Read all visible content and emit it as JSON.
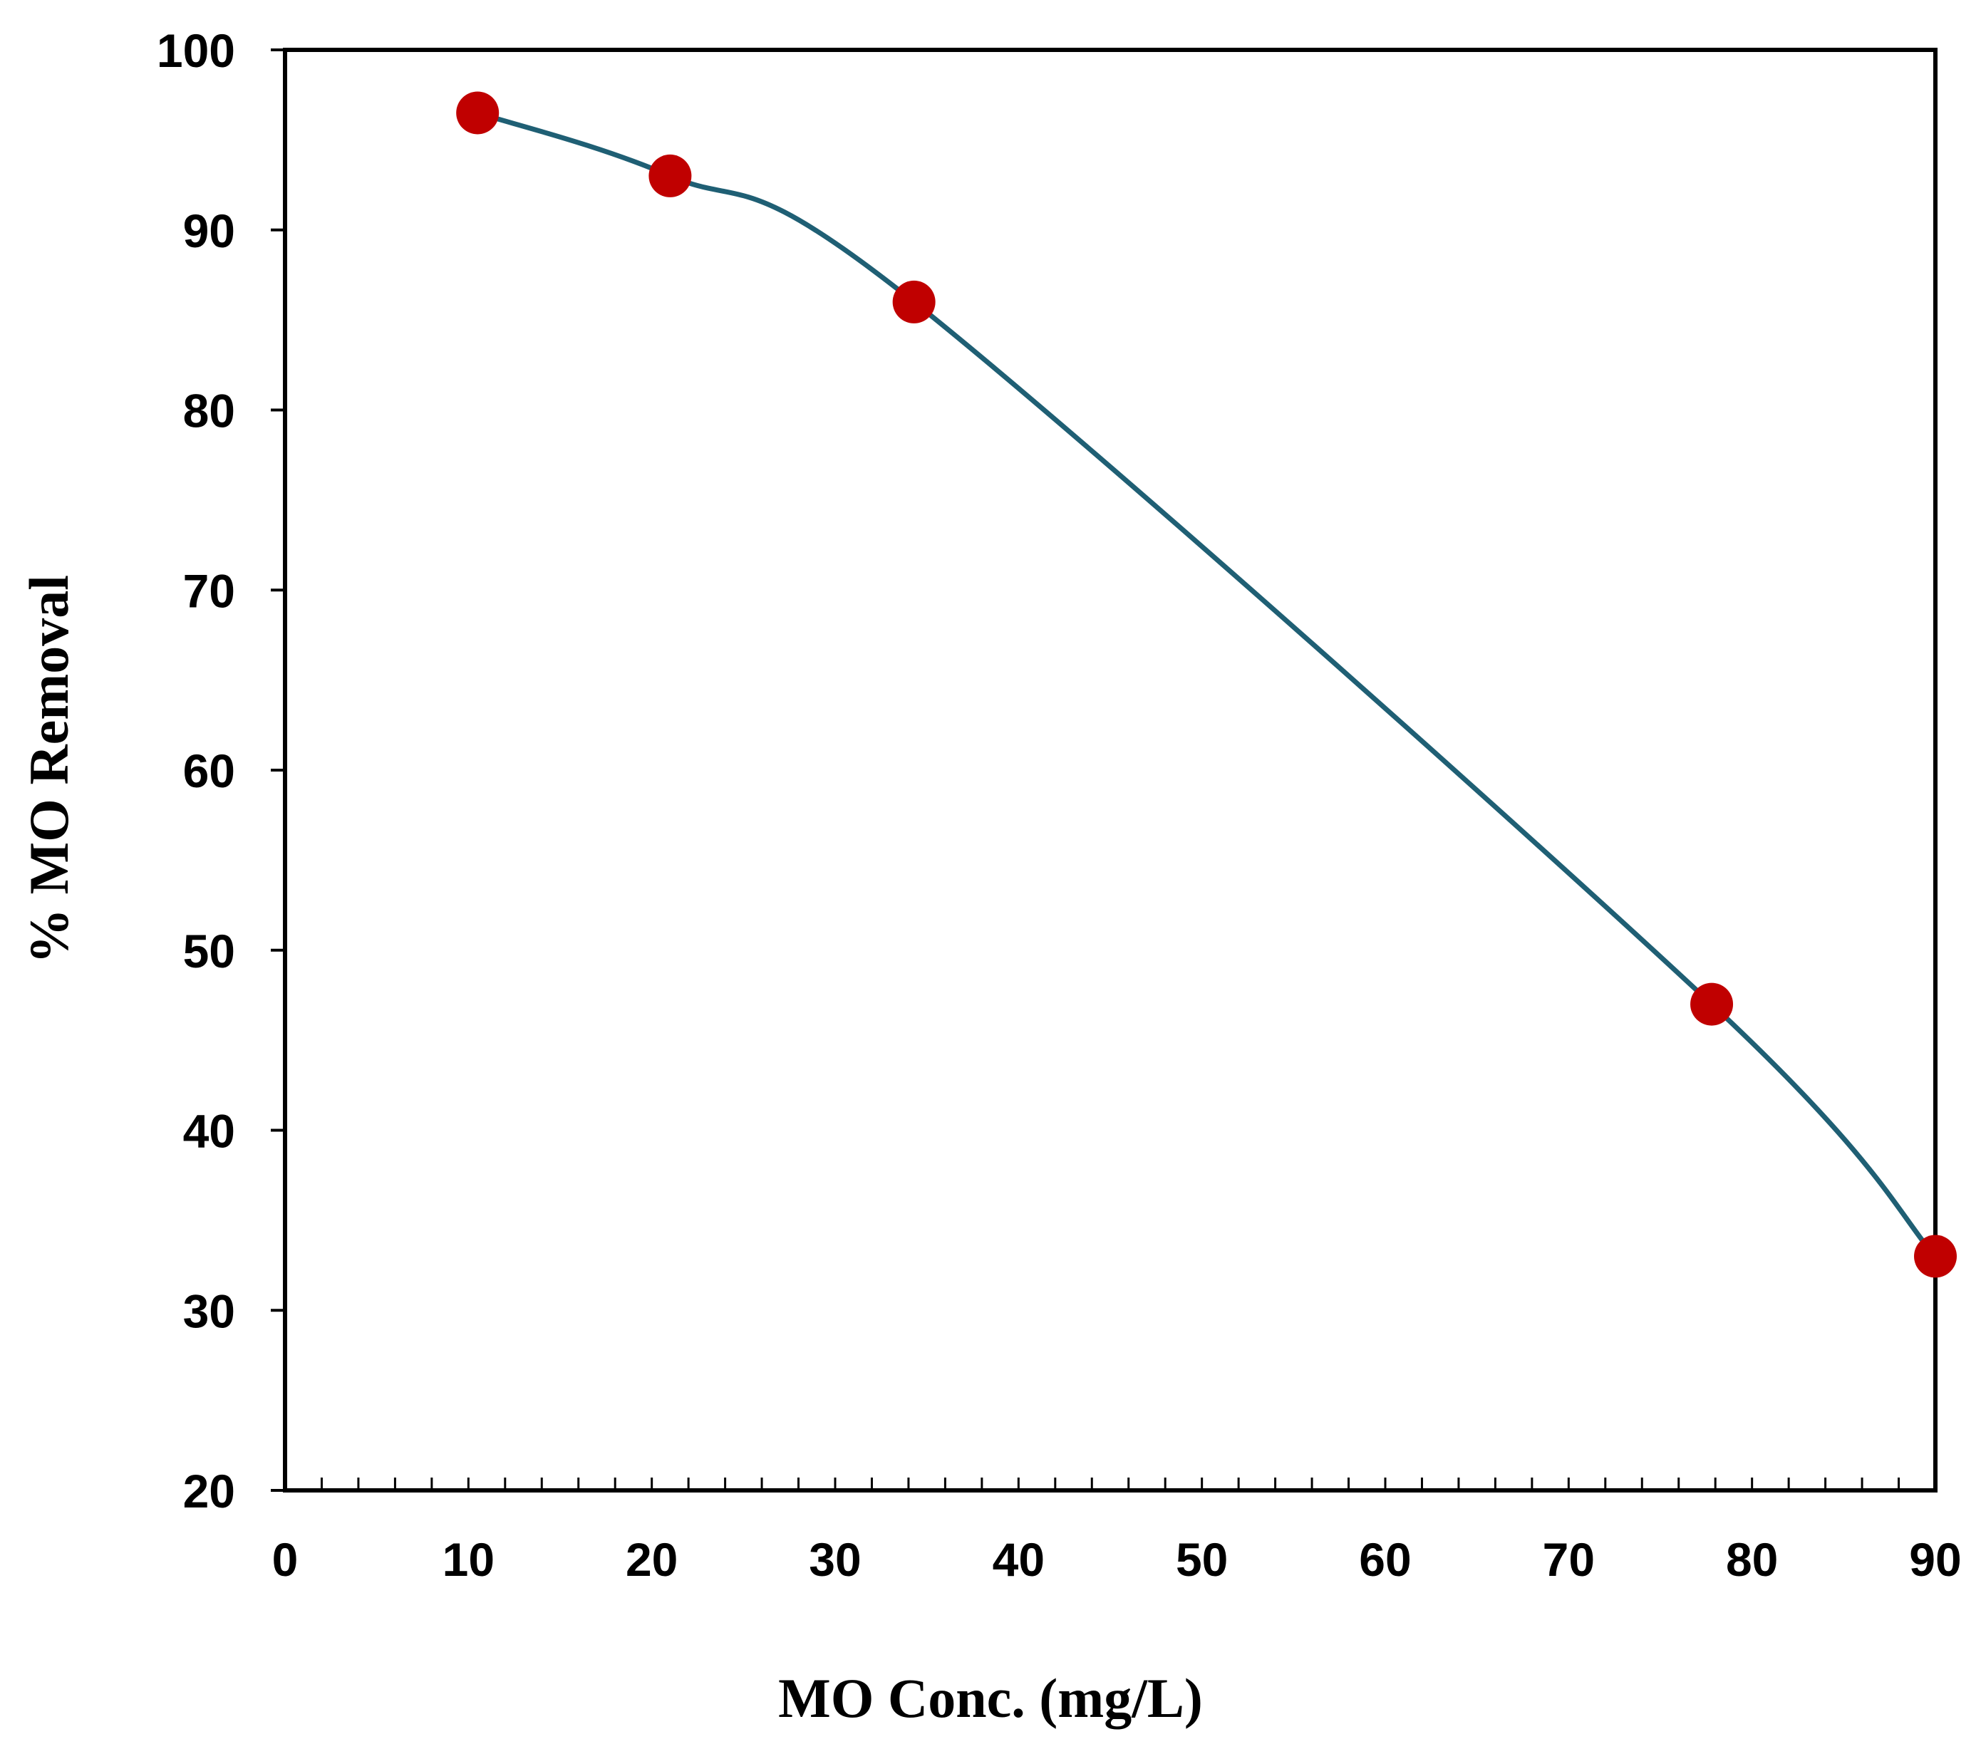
{
  "chart_data": {
    "type": "line",
    "title": "",
    "xlabel": "MO Conc. (mg/L)",
    "ylabel": "% MO Removal",
    "xlim": [
      0,
      90
    ],
    "ylim": [
      20,
      100
    ],
    "xticks": [
      0,
      10,
      20,
      30,
      40,
      50,
      60,
      70,
      80,
      90
    ],
    "yticks": [
      20,
      30,
      40,
      50,
      60,
      70,
      80,
      90,
      100
    ],
    "x_minor_step": 2,
    "grid": false,
    "legend": null,
    "series": [
      {
        "name": "% MO Removal",
        "line_color": "#1f5f74",
        "marker_color": "#c00000",
        "smooth": true,
        "points": [
          {
            "x": 10.5,
            "y": 96.5
          },
          {
            "x": 21,
            "y": 93
          },
          {
            "x": 34.3,
            "y": 86
          },
          {
            "x": 77.8,
            "y": 47
          },
          {
            "x": 90,
            "y": 33
          }
        ]
      }
    ]
  }
}
